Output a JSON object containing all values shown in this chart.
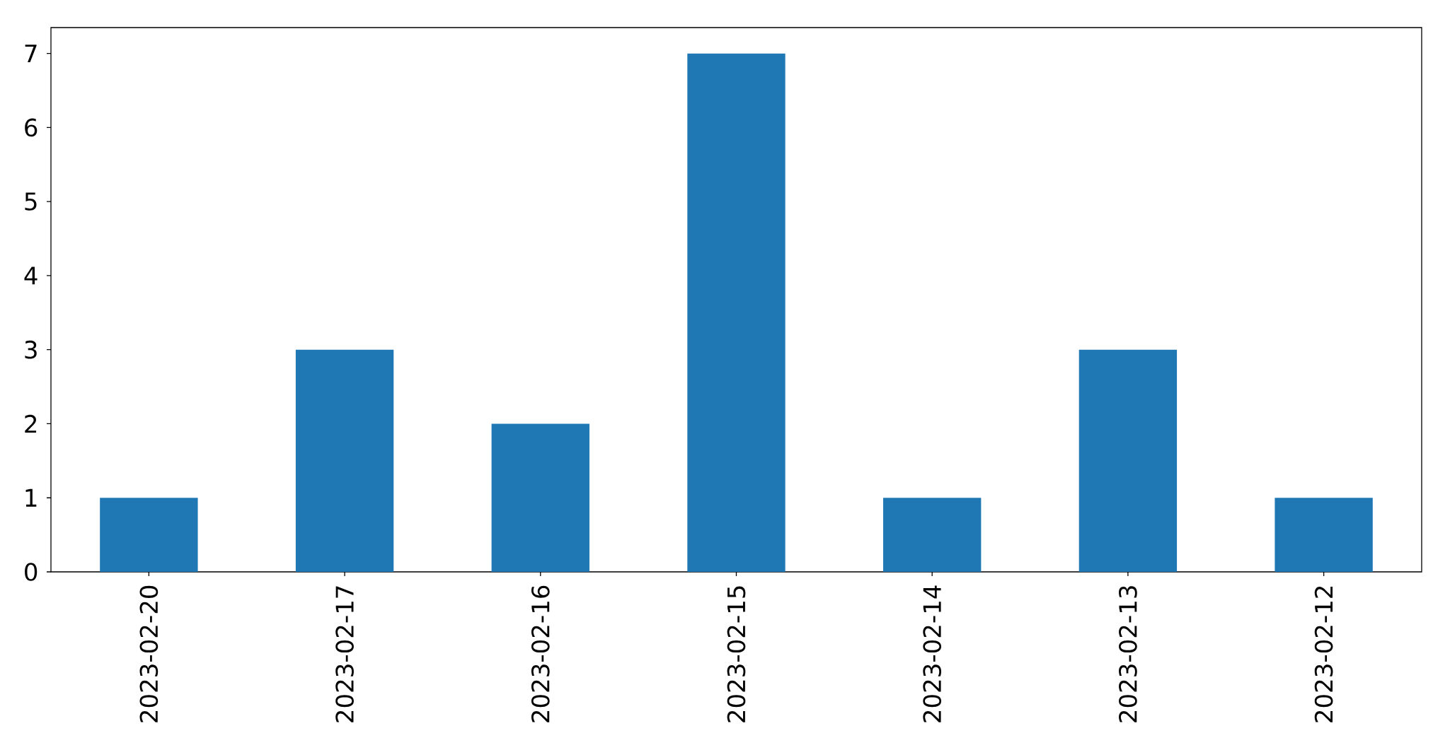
{
  "chart_data": {
    "type": "bar",
    "categories": [
      "2023-02-20",
      "2023-02-17",
      "2023-02-16",
      "2023-02-15",
      "2023-02-14",
      "2023-02-13",
      "2023-02-12"
    ],
    "values": [
      1,
      3,
      2,
      7,
      1,
      3,
      1
    ],
    "color": "#1f77b4",
    "ylim": [
      0,
      7.35
    ],
    "yticks": [
      0,
      1,
      2,
      3,
      4,
      5,
      6,
      7
    ]
  }
}
